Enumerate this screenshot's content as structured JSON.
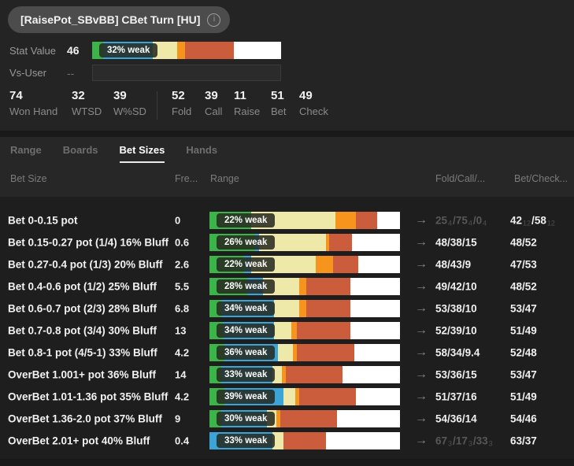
{
  "header": {
    "title": "[RaisePot_SBvBB] CBet Turn [HU]",
    "info_icon": "i",
    "stat_value_label": "Stat Value",
    "stat_value": "46",
    "stat_bar": {
      "label": "32% weak",
      "segments": [
        [
          "green",
          6
        ],
        [
          "blue",
          26
        ],
        [
          "yellow",
          13
        ],
        [
          "orange",
          4
        ],
        [
          "red",
          26
        ],
        [
          "white",
          25
        ]
      ]
    },
    "vs_user_label": "Vs-User",
    "vs_user_value": "--"
  },
  "summary": {
    "left": [
      {
        "value": "74",
        "label": "Won Hand"
      },
      {
        "value": "32",
        "label": "WTSD"
      },
      {
        "value": "39",
        "label": "W%SD"
      }
    ],
    "right": [
      {
        "value": "52",
        "label": "Fold"
      },
      {
        "value": "39",
        "label": "Call"
      },
      {
        "value": "11",
        "label": "Raise"
      },
      {
        "value": "51",
        "label": "Bet"
      },
      {
        "value": "49",
        "label": "Check"
      }
    ]
  },
  "tabs": [
    {
      "label": "Range",
      "active": false
    },
    {
      "label": "Boards",
      "active": false
    },
    {
      "label": "Bet Sizes",
      "active": true
    },
    {
      "label": "Hands",
      "active": false
    }
  ],
  "segment_colors": {
    "green": "#3bb54a",
    "blue": "#3ba5d8",
    "yellow": "#eee8a9",
    "orange": "#f7941d",
    "red": "#cb5d3d",
    "white": "#ffffff"
  },
  "table": {
    "columns": [
      "Bet Size",
      "Fre...",
      "Range",
      "Fold/Call/...",
      "Bet/Check..."
    ],
    "arrow_icon": "→",
    "rows": [
      {
        "name": "Bet 0-0.15 pot",
        "freq": "0",
        "bar_label": "22% weak",
        "segments": [
          [
            "green",
            22
          ],
          [
            "blue",
            0
          ],
          [
            "yellow",
            44
          ],
          [
            "orange",
            11
          ],
          [
            "red",
            11
          ],
          [
            "white",
            12
          ]
        ],
        "fcr": {
          "dim": true,
          "parts": [
            [
              "25",
              "4"
            ],
            [
              "75",
              "4"
            ],
            [
              "0",
              "4"
            ]
          ]
        },
        "bc": {
          "dim": false,
          "parts": [
            [
              "42",
              "12"
            ],
            [
              "58",
              "12"
            ]
          ]
        }
      },
      {
        "name": "Bet 0.15-0.27 pot (1/4) 16% Bluff",
        "freq": "0.6",
        "bar_label": "26% weak",
        "segments": [
          [
            "green",
            24
          ],
          [
            "blue",
            2
          ],
          [
            "yellow",
            35
          ],
          [
            "orange",
            2
          ],
          [
            "red",
            12
          ],
          [
            "white",
            25
          ]
        ],
        "fcr": {
          "dim": false,
          "parts": [
            [
              "48",
              ""
            ],
            [
              "38",
              ""
            ],
            [
              "15",
              ""
            ]
          ]
        },
        "bc": {
          "dim": false,
          "parts": [
            [
              "48",
              ""
            ],
            [
              "52",
              ""
            ]
          ]
        }
      },
      {
        "name": "Bet 0.27-0.4 pot (1/3) 20% Bluff",
        "freq": "2.6",
        "bar_label": "22% weak",
        "segments": [
          [
            "green",
            18
          ],
          [
            "blue",
            4
          ],
          [
            "yellow",
            34
          ],
          [
            "orange",
            9
          ],
          [
            "red",
            13
          ],
          [
            "white",
            22
          ]
        ],
        "fcr": {
          "dim": false,
          "parts": [
            [
              "48",
              ""
            ],
            [
              "43",
              ""
            ],
            [
              "9",
              ""
            ]
          ]
        },
        "bc": {
          "dim": false,
          "parts": [
            [
              "47",
              ""
            ],
            [
              "53",
              ""
            ]
          ]
        }
      },
      {
        "name": "Bet 0.4-0.6 pot (1/2) 25% Bluff",
        "freq": "5.5",
        "bar_label": "28% weak",
        "segments": [
          [
            "green",
            20
          ],
          [
            "blue",
            8
          ],
          [
            "yellow",
            19
          ],
          [
            "orange",
            4
          ],
          [
            "red",
            23
          ],
          [
            "white",
            26
          ]
        ],
        "fcr": {
          "dim": false,
          "parts": [
            [
              "49",
              ""
            ],
            [
              "42",
              ""
            ],
            [
              "10",
              ""
            ]
          ]
        },
        "bc": {
          "dim": false,
          "parts": [
            [
              "48",
              ""
            ],
            [
              "52",
              ""
            ]
          ]
        }
      },
      {
        "name": "Bet 0.6-0.7 pot (2/3) 28% Bluff",
        "freq": "6.8",
        "bar_label": "34% weak",
        "segments": [
          [
            "green",
            6
          ],
          [
            "blue",
            28
          ],
          [
            "yellow",
            13
          ],
          [
            "orange",
            4
          ],
          [
            "red",
            23
          ],
          [
            "white",
            26
          ]
        ],
        "fcr": {
          "dim": false,
          "parts": [
            [
              "53",
              ""
            ],
            [
              "38",
              ""
            ],
            [
              "10",
              ""
            ]
          ]
        },
        "bc": {
          "dim": false,
          "parts": [
            [
              "53",
              ""
            ],
            [
              "47",
              ""
            ]
          ]
        }
      },
      {
        "name": "Bet 0.7-0.8 pot (3/4) 30% Bluff",
        "freq": "13",
        "bar_label": "34% weak",
        "segments": [
          [
            "green",
            7
          ],
          [
            "blue",
            27
          ],
          [
            "yellow",
            9
          ],
          [
            "orange",
            3
          ],
          [
            "red",
            28
          ],
          [
            "white",
            26
          ]
        ],
        "fcr": {
          "dim": false,
          "parts": [
            [
              "52",
              ""
            ],
            [
              "39",
              ""
            ],
            [
              "10",
              ""
            ]
          ]
        },
        "bc": {
          "dim": false,
          "parts": [
            [
              "51",
              ""
            ],
            [
              "49",
              ""
            ]
          ]
        }
      },
      {
        "name": "Bet 0.8-1 pot (4/5-1) 33% Bluff",
        "freq": "4.2",
        "bar_label": "36% weak",
        "segments": [
          [
            "green",
            8
          ],
          [
            "blue",
            28
          ],
          [
            "yellow",
            8
          ],
          [
            "orange",
            2
          ],
          [
            "red",
            30
          ],
          [
            "white",
            24
          ]
        ],
        "fcr": {
          "dim": false,
          "parts": [
            [
              "58",
              ""
            ],
            [
              "34",
              ""
            ],
            [
              "9.4",
              ""
            ]
          ]
        },
        "bc": {
          "dim": false,
          "parts": [
            [
              "52",
              ""
            ],
            [
              "48",
              ""
            ]
          ]
        }
      },
      {
        "name": "OverBet 1.001+ pot 36% Bluff",
        "freq": "14",
        "bar_label": "33% weak",
        "segments": [
          [
            "green",
            6
          ],
          [
            "blue",
            27
          ],
          [
            "yellow",
            5
          ],
          [
            "orange",
            2
          ],
          [
            "red",
            30
          ],
          [
            "white",
            30
          ]
        ],
        "fcr": {
          "dim": false,
          "parts": [
            [
              "53",
              ""
            ],
            [
              "36",
              ""
            ],
            [
              "15",
              ""
            ]
          ]
        },
        "bc": {
          "dim": false,
          "parts": [
            [
              "53",
              ""
            ],
            [
              "47",
              ""
            ]
          ]
        }
      },
      {
        "name": "OverBet 1.01-1.36 pot 35% Bluff",
        "freq": "4.2",
        "bar_label": "39% weak",
        "segments": [
          [
            "green",
            8
          ],
          [
            "blue",
            31
          ],
          [
            "yellow",
            6
          ],
          [
            "orange",
            2
          ],
          [
            "red",
            30
          ],
          [
            "white",
            23
          ]
        ],
        "fcr": {
          "dim": false,
          "parts": [
            [
              "51",
              ""
            ],
            [
              "37",
              ""
            ],
            [
              "16",
              ""
            ]
          ]
        },
        "bc": {
          "dim": false,
          "parts": [
            [
              "51",
              ""
            ],
            [
              "49",
              ""
            ]
          ]
        }
      },
      {
        "name": "OverBet 1.36-2.0 pot 37% Bluff",
        "freq": "9",
        "bar_label": "30% weak",
        "segments": [
          [
            "green",
            6
          ],
          [
            "blue",
            24
          ],
          [
            "yellow",
            5
          ],
          [
            "orange",
            2
          ],
          [
            "red",
            30
          ],
          [
            "white",
            33
          ]
        ],
        "fcr": {
          "dim": false,
          "parts": [
            [
              "54",
              ""
            ],
            [
              "36",
              ""
            ],
            [
              "14",
              ""
            ]
          ]
        },
        "bc": {
          "dim": false,
          "parts": [
            [
              "54",
              ""
            ],
            [
              "46",
              ""
            ]
          ]
        }
      },
      {
        "name": "OverBet 2.01+ pot 40% Bluff",
        "freq": "0.4",
        "bar_label": "33% weak",
        "segments": [
          [
            "green",
            0
          ],
          [
            "blue",
            33
          ],
          [
            "yellow",
            6
          ],
          [
            "orange",
            0
          ],
          [
            "red",
            22
          ],
          [
            "white",
            39
          ]
        ],
        "fcr": {
          "dim": true,
          "parts": [
            [
              "67",
              "3"
            ],
            [
              "17",
              "3"
            ],
            [
              "33",
              "3"
            ]
          ]
        },
        "bc": {
          "dim": false,
          "parts": [
            [
              "63",
              ""
            ],
            [
              "37",
              ""
            ]
          ]
        }
      }
    ]
  }
}
